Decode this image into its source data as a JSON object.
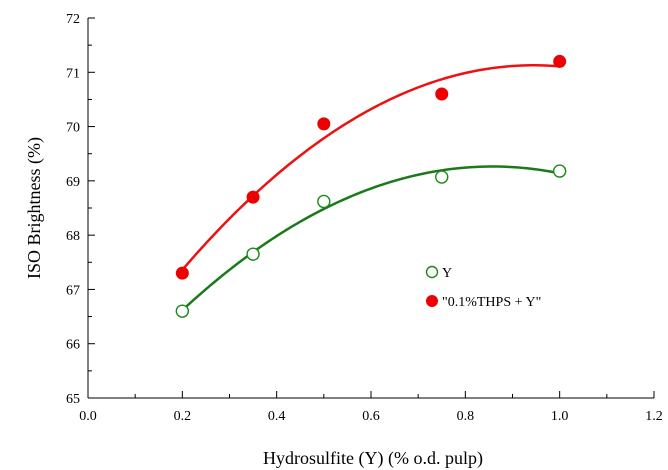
{
  "chart_data": {
    "type": "scatter",
    "xlabel": "Hydrosulfite (Y) (% o.d. pulp)",
    "ylabel": "ISO Brightness (%)",
    "xlim": [
      0.0,
      1.2
    ],
    "ylim": [
      65,
      72
    ],
    "x_ticks": [
      "0.0",
      "0.2",
      "0.4",
      "0.6",
      "0.8",
      "1.0",
      "1.2"
    ],
    "y_ticks": [
      "65",
      "66",
      "67",
      "68",
      "69",
      "70",
      "71",
      "72"
    ],
    "grid": false,
    "legend_position": "right-middle",
    "series": [
      {
        "name": "Y",
        "marker": "open-circle",
        "marker_color": "#1a8a1a",
        "line_color": "#1a7a1a",
        "x": [
          0.2,
          0.35,
          0.5,
          0.75,
          1.0
        ],
        "y": [
          66.6,
          67.65,
          68.62,
          69.07,
          69.18
        ],
        "fit": "quadratic"
      },
      {
        "name": "\"0.1%THPS + Y\"",
        "marker": "filled-circle",
        "marker_color": "#ee0000",
        "line_color": "#ee1111",
        "x": [
          0.2,
          0.35,
          0.5,
          0.75,
          1.0
        ],
        "y": [
          67.3,
          68.7,
          70.05,
          70.6,
          71.2
        ],
        "fit": "quadratic"
      }
    ]
  }
}
